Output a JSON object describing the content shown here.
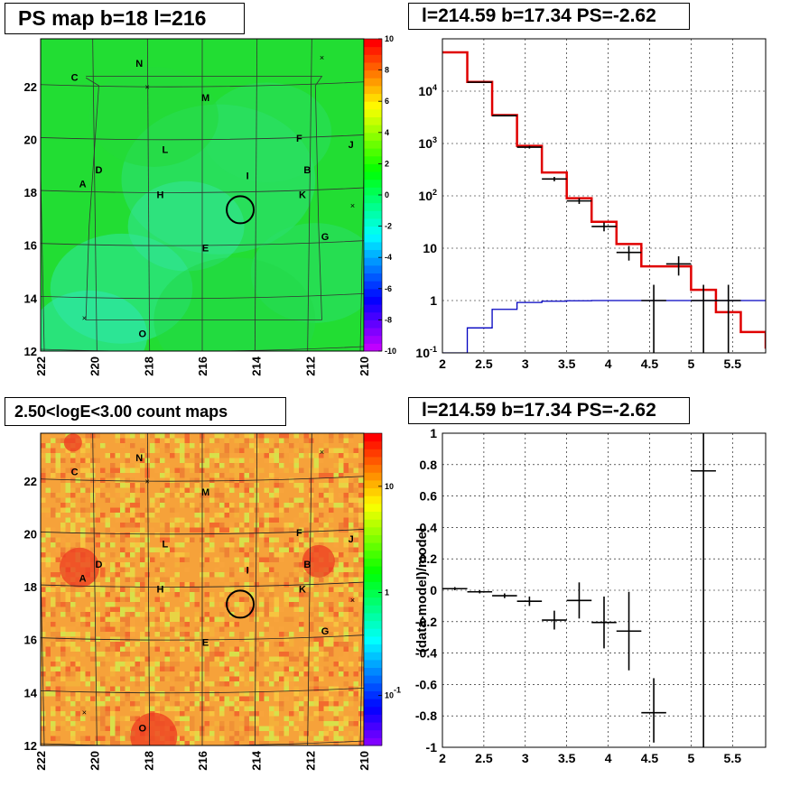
{
  "titles": {
    "ps_map": "PS map b=18 l=216",
    "spectrum": "l=214.59 b=17.34 PS=-2.62",
    "count_map": "2.50<logE<3.00 count maps",
    "residual": "l=214.59 b=17.34 PS=-2.62"
  },
  "source_labels": [
    "N",
    "C",
    "M",
    "L",
    "F",
    "J",
    "D",
    "A",
    "B",
    "H",
    "I",
    "K",
    "E",
    "G",
    "O"
  ],
  "colors": {
    "model_red": "#e00000",
    "background_blue": "#0000c0",
    "data_black": "#000000",
    "ps_map_green": "#22dd33",
    "count_map_orange": "#f6a23a"
  },
  "chart_data": [
    {
      "type": "heatmap",
      "name": "ps_map",
      "title": "PS map b=18 l=216",
      "x_ticks": [
        "222",
        "220",
        "218",
        "216",
        "214",
        "212",
        "210"
      ],
      "y_ticks": [
        "12",
        "14",
        "16",
        "18",
        "20",
        "22"
      ],
      "xlim": [
        222,
        210
      ],
      "ylim": [
        12,
        23.8
      ],
      "colorbar": {
        "scale": "linear",
        "range": [
          -10,
          10
        ],
        "ticks": [
          "10",
          "8",
          "6",
          "4",
          "2",
          "0",
          "-2",
          "-4",
          "-6",
          "-8",
          "-10"
        ]
      },
      "marked_position": {
        "l": 214.59,
        "b": 17.34
      }
    },
    {
      "type": "line",
      "name": "spectrum",
      "title": "l=214.59 b=17.34 PS=-2.62",
      "xlim": [
        2,
        5.9
      ],
      "ylim": [
        0.1,
        100000
      ],
      "ylog": true,
      "x_ticks": [
        "2",
        "2.5",
        "3",
        "3.5",
        "4",
        "4.5",
        "5",
        "5.5"
      ],
      "y_ticks": [
        "10^-1",
        "1",
        "10",
        "10^2",
        "10^3",
        "10^4"
      ],
      "grid": true,
      "series": [
        {
          "role": "model",
          "style": "step",
          "bins": [
            2.0,
            2.3,
            2.6,
            2.9,
            3.2,
            3.5,
            3.8,
            4.1,
            4.4,
            4.7,
            5.0,
            5.3,
            5.6,
            5.9
          ],
          "values": [
            55000,
            15000,
            3500,
            900,
            280,
            90,
            32,
            12,
            4.5,
            4.5,
            1.6,
            0.6,
            0.25,
            0.12
          ]
        },
        {
          "role": "background",
          "style": "step",
          "bins": [
            2.0,
            2.3,
            2.6,
            2.9,
            3.2,
            3.5,
            3.8,
            4.1,
            4.4,
            4.7,
            5.0,
            5.3,
            5.6,
            5.9
          ],
          "values": [
            0.05,
            0.3,
            0.68,
            0.92,
            0.97,
            0.99,
            1.0,
            1.0,
            1.0,
            1.0,
            1.0,
            1.0,
            1.0,
            1.0
          ]
        },
        {
          "role": "data",
          "style": "errorbar",
          "x": [
            2.45,
            2.75,
            3.05,
            3.35,
            3.65,
            3.95,
            4.25,
            4.55,
            4.85,
            5.15,
            5.45
          ],
          "xerr": 0.15,
          "y": [
            14800,
            3400,
            850,
            210,
            80,
            26,
            8.3,
            1.0,
            5.0,
            1.0,
            1.0
          ],
          "ylow": [
            14500,
            3300,
            800,
            190,
            70,
            21,
            5.8,
            0.1,
            3.0,
            0.1,
            0.1
          ],
          "yhigh": [
            15100,
            3500,
            900,
            230,
            90,
            31,
            11,
            2.0,
            7.0,
            2.0,
            2.0
          ]
        }
      ]
    },
    {
      "type": "heatmap",
      "name": "count_map",
      "title": "2.50<logE<3.00 count maps",
      "x_ticks": [
        "222",
        "220",
        "218",
        "216",
        "214",
        "212",
        "210"
      ],
      "y_ticks": [
        "12",
        "14",
        "16",
        "18",
        "20",
        "22"
      ],
      "xlim": [
        222,
        210
      ],
      "ylim": [
        12,
        23.8
      ],
      "colorbar": {
        "scale": "log",
        "ticks": [
          "10",
          "1",
          "10^-1"
        ]
      },
      "marked_position": {
        "l": 214.59,
        "b": 17.34
      }
    },
    {
      "type": "scatter",
      "name": "residual",
      "title": "l=214.59 b=17.34 PS=-2.62",
      "ylabel": "(data-model)/model",
      "xlim": [
        2,
        5.9
      ],
      "ylim": [
        -1,
        1
      ],
      "x_ticks": [
        "2",
        "2.5",
        "3",
        "3.5",
        "4",
        "4.5",
        "5",
        "5.5"
      ],
      "y_ticks": [
        "-1",
        "-0.8",
        "-0.6",
        "-0.4",
        "-0.2",
        "0",
        "0.2",
        "0.4",
        "0.6",
        "0.8",
        "1"
      ],
      "grid": true,
      "points": {
        "x": [
          2.15,
          2.45,
          2.75,
          3.05,
          3.35,
          3.65,
          3.95,
          4.25,
          4.55,
          5.15
        ],
        "xerr": 0.15,
        "y": [
          0.01,
          -0.01,
          -0.035,
          -0.07,
          -0.19,
          -0.065,
          -0.205,
          -0.26,
          -0.78,
          0.76
        ],
        "ylow": [
          0.0,
          -0.02,
          -0.05,
          -0.1,
          -0.25,
          -0.18,
          -0.37,
          -0.51,
          -0.97,
          -1.0
        ],
        "yhigh": [
          0.02,
          0.0,
          -0.02,
          -0.04,
          -0.13,
          0.05,
          -0.04,
          -0.01,
          -0.56,
          1.0
        ]
      }
    }
  ]
}
